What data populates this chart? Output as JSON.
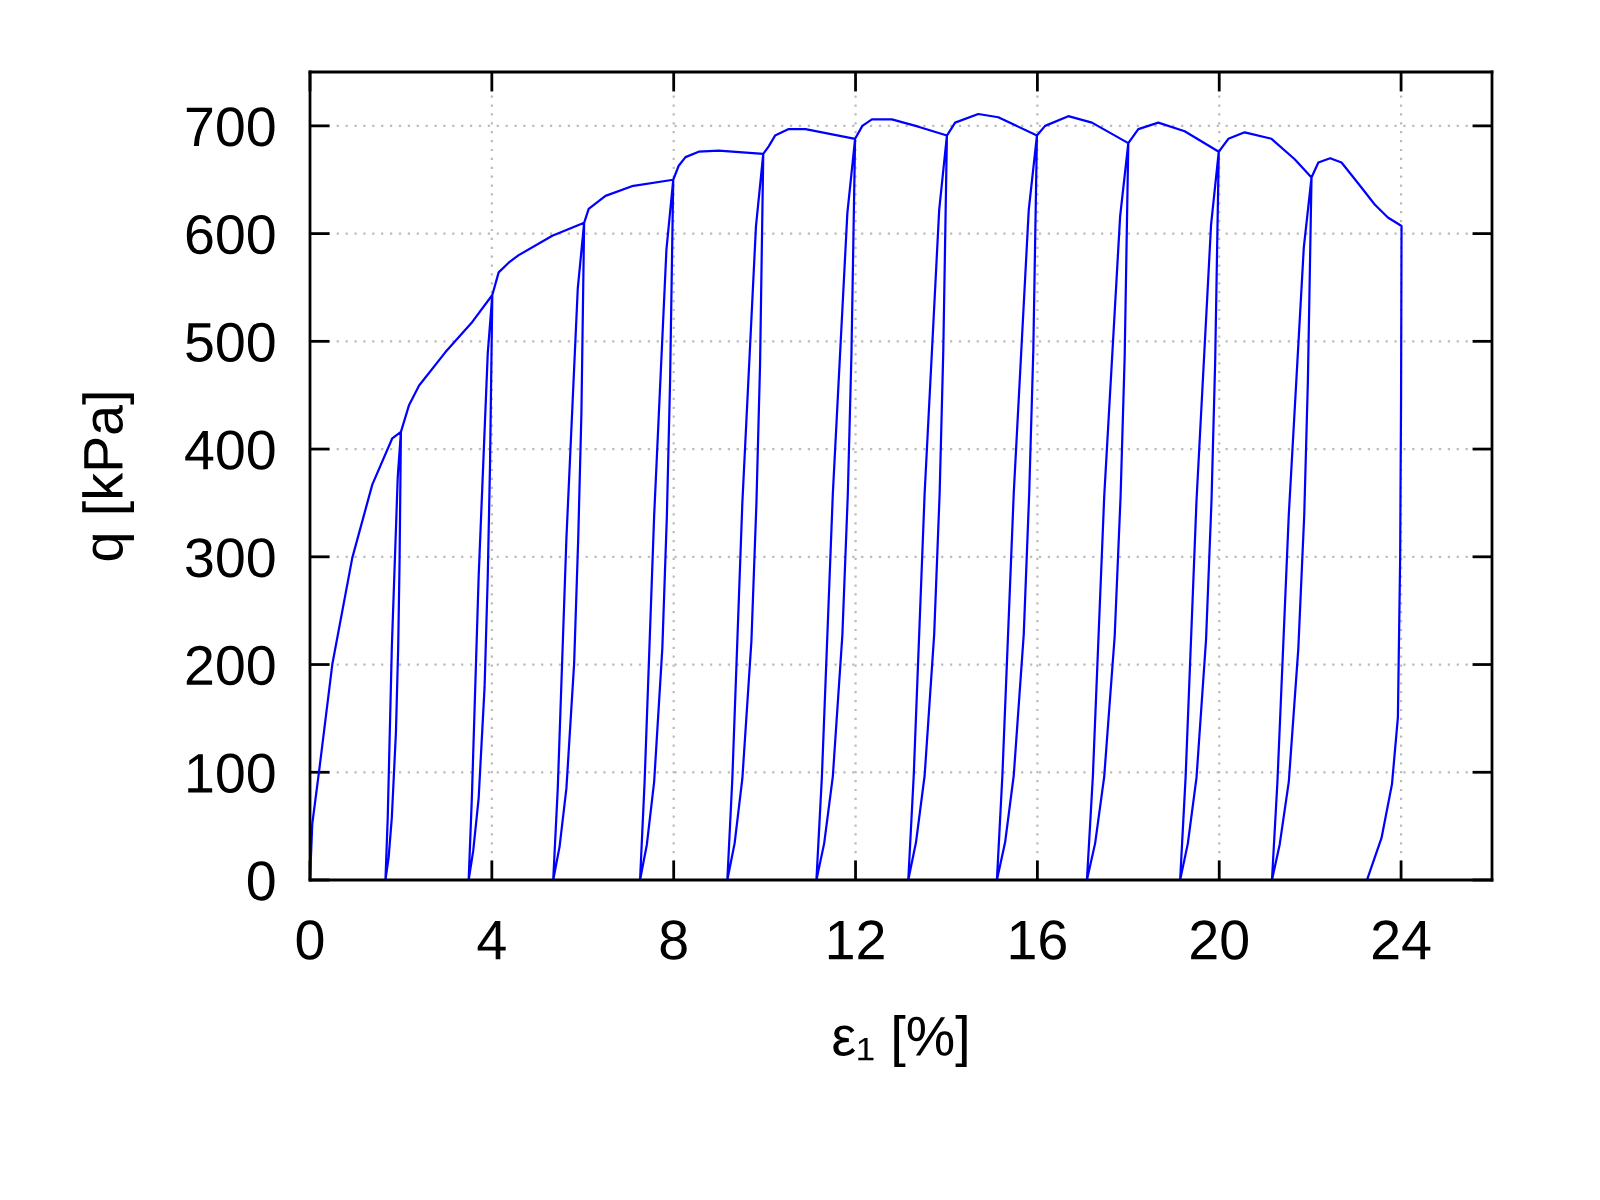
{
  "chart_data": {
    "type": "line",
    "xlabel": "ε₁ [%]",
    "ylabel": "q [kPa]",
    "xlim": [
      0,
      26
    ],
    "xticks": [
      0,
      4,
      8,
      12,
      16,
      20,
      24
    ],
    "ylim": [
      0,
      750
    ],
    "yticks": [
      0,
      100,
      200,
      300,
      400,
      500,
      600,
      700
    ],
    "grid": true,
    "line_style": "solid",
    "series": [
      {
        "color": "#0000ff",
        "x": [
          0,
          0.05,
          0.2,
          0.49,
          0.93,
          1.37,
          1.81,
          2.0,
          1.97,
          1.94,
          1.89,
          1.8,
          1.73,
          1.66,
          1.71,
          1.8,
          1.93,
          2.0,
          2.18,
          2.4,
          2.98,
          3.57,
          4.01,
          3.96,
          3.91,
          3.84,
          3.71,
          3.59,
          3.49,
          3.56,
          3.71,
          3.91,
          4.01,
          4.15,
          4.37,
          4.59,
          5.33,
          6.03,
          5.97,
          5.9,
          5.81,
          5.64,
          5.49,
          5.35,
          5.45,
          5.64,
          5.89,
          6.03,
          6.13,
          6.5,
          7.08,
          7.99,
          7.92,
          7.85,
          7.75,
          7.57,
          7.41,
          7.26,
          7.36,
          7.57,
          7.84,
          7.99,
          8.11,
          8.26,
          8.55,
          8.99,
          9.97,
          9.9,
          9.82,
          9.71,
          9.51,
          9.34,
          9.18,
          9.29,
          9.51,
          9.81,
          9.97,
          10.09,
          10.23,
          10.53,
          10.9,
          11.99,
          11.91,
          11.83,
          11.71,
          11.5,
          11.31,
          11.14,
          11.26,
          11.5,
          11.82,
          11.99,
          12.15,
          12.36,
          12.8,
          13.4,
          14.01,
          13.93,
          13.85,
          13.73,
          13.52,
          13.33,
          13.16,
          13.28,
          13.52,
          13.84,
          14.01,
          14.19,
          14.7,
          15.14,
          15.99,
          15.91,
          15.82,
          15.7,
          15.48,
          15.29,
          15.11,
          15.23,
          15.48,
          15.81,
          15.99,
          16.17,
          16.68,
          17.2,
          18.0,
          17.92,
          17.83,
          17.7,
          17.47,
          17.27,
          17.09,
          17.22,
          17.47,
          17.82,
          18.0,
          18.22,
          18.66,
          19.24,
          19.99,
          19.91,
          19.83,
          19.71,
          19.5,
          19.31,
          19.14,
          19.26,
          19.5,
          19.82,
          19.99,
          20.2,
          20.56,
          21.15,
          21.66,
          22.03,
          21.95,
          21.87,
          21.74,
          21.53,
          21.33,
          21.16,
          21.28,
          21.53,
          21.86,
          22.03,
          22.18,
          22.44,
          22.69,
          23.05,
          23.42,
          23.71,
          24.01,
          24.0,
          23.98,
          23.93,
          23.8,
          23.57,
          23.25
        ],
        "values": [
          0,
          52,
          101,
          200,
          299,
          367,
          410,
          416,
          295,
          216,
          137,
          58,
          21,
          0,
          58,
          216,
          374,
          416,
          441,
          459,
          490,
          518,
          543,
          386,
          282,
          179,
          76,
          27,
          0,
          76,
          282,
          489,
          543,
          564,
          573,
          580,
          598,
          610,
          433,
          317,
          201,
          85,
          31,
          0,
          85,
          317,
          549,
          610,
          623,
          635,
          644,
          650,
          462,
          338,
          215,
          91,
          33,
          0,
          91,
          338,
          585,
          650,
          663,
          671,
          676,
          677,
          674,
          479,
          350,
          222,
          94,
          34,
          0,
          94,
          350,
          607,
          674,
          681,
          691,
          697,
          697,
          688,
          488,
          358,
          227,
          96,
          34,
          0,
          96,
          358,
          619,
          688,
          700,
          706,
          706,
          699,
          691,
          491,
          359,
          228,
          97,
          35,
          0,
          97,
          359,
          622,
          691,
          703,
          711,
          708,
          691,
          491,
          359,
          228,
          97,
          35,
          0,
          97,
          359,
          622,
          691,
          700,
          709,
          703,
          684,
          486,
          356,
          226,
          96,
          34,
          0,
          96,
          356,
          616,
          684,
          697,
          703,
          695,
          676,
          480,
          352,
          223,
          95,
          34,
          0,
          95,
          352,
          608,
          676,
          688,
          694,
          688,
          669,
          652,
          463,
          339,
          215,
          91,
          33,
          0,
          91,
          339,
          587,
          652,
          666,
          670,
          666,
          647,
          627,
          615,
          607,
          450,
          300,
          151,
          89,
          39,
          0
        ]
      }
    ]
  }
}
